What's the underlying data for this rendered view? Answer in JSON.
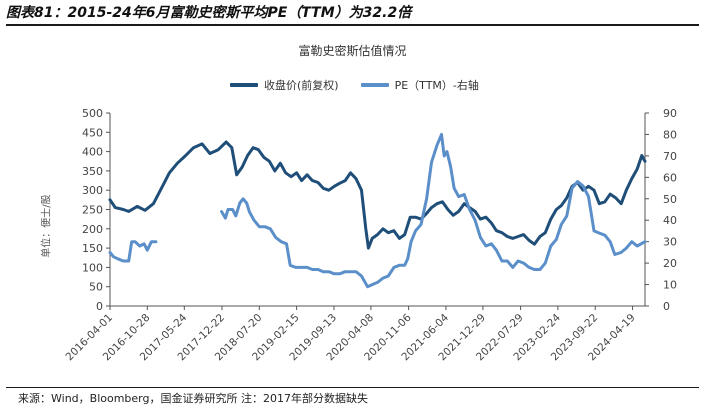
{
  "figure": {
    "title": "图表81：2015-24年6月富勒史密斯平均PE（TTM）为32.2倍",
    "footnote": "来源：Wind，Bloomberg，国金证券研究所 注：2017年部分数据缺失"
  },
  "chart_data": {
    "type": "line",
    "title": "富勒史密斯估值情况",
    "ylabel_left": "单位：便士/股",
    "ylim_left": [
      0,
      500
    ],
    "yticks_left": [
      "0",
      "50",
      "100",
      "150",
      "200",
      "250",
      "300",
      "350",
      "400",
      "450",
      "500"
    ],
    "ylim_right": [
      0,
      90
    ],
    "yticks_right": [
      "0",
      "10",
      "20",
      "30",
      "40",
      "50",
      "60",
      "70",
      "80",
      "90"
    ],
    "x_start": "2016-04-01",
    "x_end": "2024-06-28",
    "xtick_labels": [
      "2016-04-01",
      "2016-10-28",
      "2017-05-24",
      "2017-12-22",
      "2018-07-20",
      "2019-02-15",
      "2019-09-13",
      "2020-04-08",
      "2020-11-06",
      "2021-06-04",
      "2021-12-29",
      "2022-07-29",
      "2023-02-24",
      "2023-09-22",
      "2024-04-19"
    ],
    "series": [
      {
        "name": "收盘价(前复权)",
        "axis": "left",
        "color": "#1f4e79",
        "points": [
          [
            "2016-04-01",
            275
          ],
          [
            "2016-05-01",
            255
          ],
          [
            "2016-06-15",
            250
          ],
          [
            "2016-07-15",
            245
          ],
          [
            "2016-09-01",
            258
          ],
          [
            "2016-10-15",
            248
          ],
          [
            "2016-12-01",
            265
          ],
          [
            "2017-01-15",
            305
          ],
          [
            "2017-03-01",
            345
          ],
          [
            "2017-04-15",
            370
          ],
          [
            "2017-06-01",
            390
          ],
          [
            "2017-07-15",
            410
          ],
          [
            "2017-09-01",
            420
          ],
          [
            "2017-10-15",
            395
          ],
          [
            "2017-12-01",
            405
          ],
          [
            "2018-01-15",
            425
          ],
          [
            "2018-02-15",
            410
          ],
          [
            "2018-03-15",
            340
          ],
          [
            "2018-04-15",
            360
          ],
          [
            "2018-05-15",
            390
          ],
          [
            "2018-06-15",
            410
          ],
          [
            "2018-07-15",
            405
          ],
          [
            "2018-08-15",
            385
          ],
          [
            "2018-09-15",
            375
          ],
          [
            "2018-10-15",
            350
          ],
          [
            "2018-11-15",
            370
          ],
          [
            "2018-12-15",
            345
          ],
          [
            "2019-01-15",
            335
          ],
          [
            "2019-02-15",
            345
          ],
          [
            "2019-03-15",
            325
          ],
          [
            "2019-04-15",
            340
          ],
          [
            "2019-05-15",
            325
          ],
          [
            "2019-06-15",
            320
          ],
          [
            "2019-07-15",
            305
          ],
          [
            "2019-08-15",
            300
          ],
          [
            "2019-09-15",
            310
          ],
          [
            "2019-10-15",
            318
          ],
          [
            "2019-11-15",
            325
          ],
          [
            "2019-12-15",
            345
          ],
          [
            "2020-01-15",
            330
          ],
          [
            "2020-02-15",
            300
          ],
          [
            "2020-03-10",
            200
          ],
          [
            "2020-03-25",
            150
          ],
          [
            "2020-04-15",
            175
          ],
          [
            "2020-05-15",
            185
          ],
          [
            "2020-06-15",
            200
          ],
          [
            "2020-07-15",
            190
          ],
          [
            "2020-08-15",
            195
          ],
          [
            "2020-09-15",
            175
          ],
          [
            "2020-10-15",
            185
          ],
          [
            "2020-11-15",
            230
          ],
          [
            "2020-12-15",
            230
          ],
          [
            "2021-01-15",
            225
          ],
          [
            "2021-02-15",
            240
          ],
          [
            "2021-03-15",
            255
          ],
          [
            "2021-04-15",
            265
          ],
          [
            "2021-05-15",
            270
          ],
          [
            "2021-06-15",
            250
          ],
          [
            "2021-07-15",
            235
          ],
          [
            "2021-08-15",
            245
          ],
          [
            "2021-09-15",
            265
          ],
          [
            "2021-10-15",
            255
          ],
          [
            "2021-11-15",
            245
          ],
          [
            "2021-12-15",
            225
          ],
          [
            "2022-01-15",
            230
          ],
          [
            "2022-02-15",
            215
          ],
          [
            "2022-03-15",
            195
          ],
          [
            "2022-04-15",
            190
          ],
          [
            "2022-05-15",
            180
          ],
          [
            "2022-06-15",
            175
          ],
          [
            "2022-07-15",
            180
          ],
          [
            "2022-08-15",
            185
          ],
          [
            "2022-09-15",
            170
          ],
          [
            "2022-10-15",
            160
          ],
          [
            "2022-11-15",
            180
          ],
          [
            "2022-12-15",
            190
          ],
          [
            "2023-01-15",
            225
          ],
          [
            "2023-02-15",
            250
          ],
          [
            "2023-03-15",
            260
          ],
          [
            "2023-04-15",
            280
          ],
          [
            "2023-05-15",
            310
          ],
          [
            "2023-06-15",
            320
          ],
          [
            "2023-07-15",
            300
          ],
          [
            "2023-08-15",
            310
          ],
          [
            "2023-09-15",
            300
          ],
          [
            "2023-10-15",
            265
          ],
          [
            "2023-11-15",
            270
          ],
          [
            "2023-12-15",
            290
          ],
          [
            "2024-01-15",
            280
          ],
          [
            "2024-02-15",
            265
          ],
          [
            "2024-03-15",
            300
          ],
          [
            "2024-04-15",
            330
          ],
          [
            "2024-05-15",
            355
          ],
          [
            "2024-06-10",
            390
          ],
          [
            "2024-06-28",
            375
          ]
        ]
      },
      {
        "name": "PE（TTM）-右轴",
        "axis": "right",
        "color": "#5b8fc9",
        "points": [
          [
            "2016-04-01",
            25
          ],
          [
            "2016-04-20",
            23
          ],
          [
            "2016-05-15",
            22
          ],
          [
            "2016-06-15",
            21
          ],
          [
            "2016-07-15",
            21
          ],
          [
            "2016-08-01",
            30
          ],
          [
            "2016-08-20",
            30
          ],
          [
            "2016-09-15",
            28
          ],
          [
            "2016-10-10",
            29
          ],
          [
            "2016-10-28",
            26
          ],
          [
            "2016-11-20",
            30
          ],
          [
            "2016-12-15",
            30
          ],
          null,
          [
            "2017-12-20",
            44
          ],
          [
            "2018-01-10",
            41
          ],
          [
            "2018-01-25",
            45
          ],
          [
            "2018-02-20",
            45
          ],
          [
            "2018-03-10",
            42
          ],
          [
            "2018-04-01",
            48
          ],
          [
            "2018-04-20",
            50
          ],
          [
            "2018-05-10",
            48
          ],
          [
            "2018-05-25",
            44
          ],
          [
            "2018-06-20",
            40
          ],
          [
            "2018-07-20",
            37
          ],
          [
            "2018-08-20",
            37
          ],
          [
            "2018-09-20",
            36
          ],
          [
            "2018-10-20",
            32
          ],
          [
            "2018-11-20",
            30
          ],
          [
            "2018-12-20",
            29
          ],
          [
            "2019-01-10",
            19
          ],
          [
            "2019-02-10",
            18
          ],
          [
            "2019-03-15",
            18
          ],
          [
            "2019-04-15",
            18
          ],
          [
            "2019-05-15",
            17
          ],
          [
            "2019-06-15",
            17
          ],
          [
            "2019-07-15",
            16
          ],
          [
            "2019-08-15",
            16
          ],
          [
            "2019-09-15",
            15
          ],
          [
            "2019-10-15",
            15
          ],
          [
            "2019-11-15",
            16
          ],
          [
            "2019-12-15",
            16
          ],
          [
            "2020-01-15",
            16
          ],
          [
            "2020-02-15",
            14
          ],
          [
            "2020-03-20",
            9
          ],
          [
            "2020-04-15",
            10
          ],
          [
            "2020-05-15",
            11
          ],
          [
            "2020-06-15",
            13
          ],
          [
            "2020-07-15",
            14
          ],
          [
            "2020-08-15",
            18
          ],
          [
            "2020-09-15",
            19
          ],
          [
            "2020-10-15",
            19
          ],
          [
            "2020-11-01",
            22
          ],
          [
            "2020-11-20",
            30
          ],
          [
            "2020-12-15",
            35
          ],
          [
            "2021-01-15",
            38
          ],
          [
            "2021-02-15",
            50
          ],
          [
            "2021-03-15",
            67
          ],
          [
            "2021-04-15",
            75
          ],
          [
            "2021-05-10",
            80
          ],
          [
            "2021-05-25",
            70
          ],
          [
            "2021-06-10",
            72
          ],
          [
            "2021-06-30",
            65
          ],
          [
            "2021-07-20",
            55
          ],
          [
            "2021-08-15",
            51
          ],
          [
            "2021-09-15",
            52
          ],
          [
            "2021-10-15",
            45
          ],
          [
            "2021-11-15",
            40
          ],
          [
            "2021-12-15",
            32
          ],
          [
            "2022-01-15",
            28
          ],
          [
            "2022-02-15",
            29
          ],
          [
            "2022-03-15",
            26
          ],
          [
            "2022-04-15",
            21
          ],
          [
            "2022-05-15",
            21
          ],
          [
            "2022-06-15",
            18
          ],
          [
            "2022-07-15",
            21
          ],
          [
            "2022-08-15",
            20
          ],
          [
            "2022-09-15",
            18
          ],
          [
            "2022-10-15",
            17
          ],
          [
            "2022-11-15",
            17
          ],
          [
            "2022-12-15",
            20
          ],
          [
            "2023-01-15",
            28
          ],
          [
            "2023-02-15",
            31
          ],
          [
            "2023-03-15",
            38
          ],
          [
            "2023-04-15",
            42
          ],
          [
            "2023-05-15",
            55
          ],
          [
            "2023-06-15",
            58
          ],
          [
            "2023-07-15",
            56
          ],
          [
            "2023-08-15",
            51
          ],
          [
            "2023-09-15",
            35
          ],
          [
            "2023-10-15",
            34
          ],
          [
            "2023-11-15",
            33
          ],
          [
            "2023-12-15",
            30
          ],
          [
            "2024-01-10",
            24
          ],
          [
            "2024-02-15",
            25
          ],
          [
            "2024-03-15",
            27
          ],
          [
            "2024-04-15",
            30
          ],
          [
            "2024-05-15",
            28
          ],
          [
            "2024-06-28",
            30
          ]
        ]
      }
    ]
  }
}
